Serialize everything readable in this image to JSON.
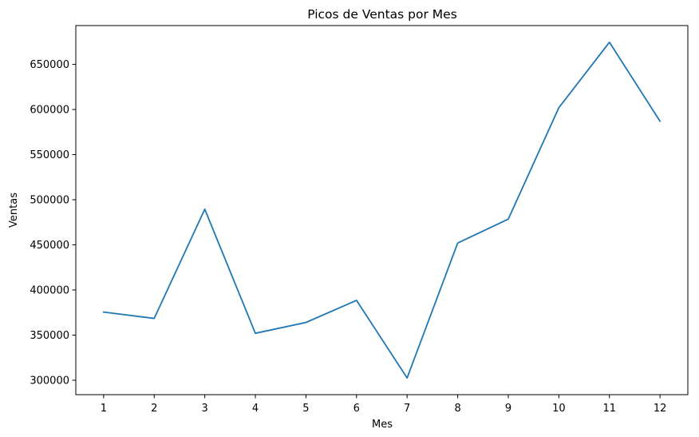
{
  "chart_data": {
    "type": "line",
    "title": "Picos de Ventas por Mes",
    "xlabel": "Mes",
    "ylabel": "Ventas",
    "x": [
      1,
      2,
      3,
      4,
      5,
      6,
      7,
      8,
      9,
      10,
      11,
      12
    ],
    "series": [
      {
        "values": [
          375500,
          368500,
          489500,
          352000,
          364000,
          388500,
          302500,
          452000,
          478500,
          602000,
          674500,
          587000
        ],
        "color": "#1f77b4"
      }
    ],
    "xticks": [
      "1",
      "2",
      "3",
      "4",
      "5",
      "6",
      "7",
      "8",
      "9",
      "10",
      "11",
      "12"
    ],
    "yticks": [
      "300000",
      "350000",
      "400000",
      "450000",
      "500000",
      "550000",
      "600000",
      "650000"
    ],
    "ylim": [
      284000,
      693000
    ],
    "xlim": [
      0.45,
      12.55
    ],
    "grid": false,
    "legend": "none"
  }
}
